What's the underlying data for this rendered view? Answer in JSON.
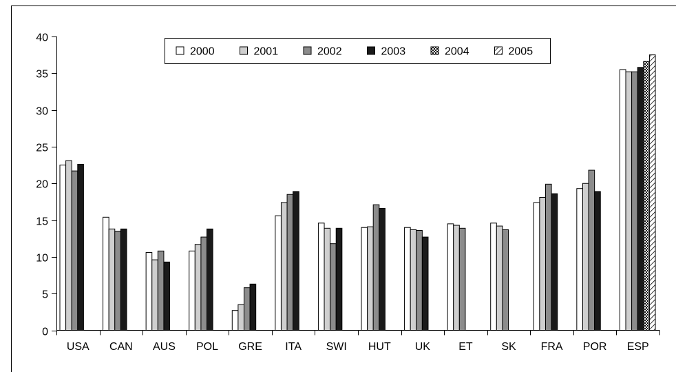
{
  "chart_data": {
    "type": "bar",
    "title": "",
    "xlabel": "",
    "ylabel": "",
    "ylim": [
      0,
      40
    ],
    "yticks": [
      0,
      5,
      10,
      15,
      20,
      25,
      30,
      35,
      40
    ],
    "grid": false,
    "legend_position": "top-center",
    "categories": [
      "USA",
      "CAN",
      "AUS",
      "POL",
      "GRE",
      "ITA",
      "SWI",
      "HUT",
      "UK",
      "ET",
      "SK",
      "FRA",
      "POR",
      "ESP"
    ],
    "series": [
      {
        "name": "2000",
        "fill": "#ffffff",
        "pattern": "solid",
        "values": [
          22.5,
          15.4,
          10.6,
          10.8,
          2.7,
          15.6,
          14.6,
          14.0,
          14.0,
          14.5,
          14.6,
          17.4,
          19.3,
          35.5
        ]
      },
      {
        "name": "2001",
        "fill": "#cfcfcf",
        "pattern": "solid",
        "values": [
          23.1,
          13.8,
          9.6,
          11.7,
          3.5,
          17.4,
          13.9,
          14.1,
          13.7,
          14.3,
          14.2,
          18.1,
          20.0,
          35.2
        ]
      },
      {
        "name": "2002",
        "fill": "#8c8c8c",
        "pattern": "solid",
        "values": [
          21.7,
          13.5,
          10.8,
          12.7,
          5.8,
          18.5,
          11.8,
          17.1,
          13.6,
          13.9,
          13.7,
          19.9,
          21.8,
          35.2
        ]
      },
      {
        "name": "2003",
        "fill": "#1a1a1a",
        "pattern": "solid",
        "values": [
          22.6,
          13.8,
          9.3,
          13.8,
          6.3,
          18.9,
          13.9,
          16.6,
          12.7,
          null,
          null,
          18.6,
          18.9,
          35.8
        ]
      },
      {
        "name": "2004",
        "fill": "#ffffff",
        "pattern": "dots",
        "values": [
          null,
          null,
          null,
          null,
          null,
          null,
          null,
          null,
          null,
          null,
          null,
          null,
          null,
          36.6
        ]
      },
      {
        "name": "2005",
        "fill": "#ffffff",
        "pattern": "hatch",
        "values": [
          null,
          null,
          null,
          null,
          null,
          null,
          null,
          null,
          null,
          null,
          null,
          null,
          null,
          37.5
        ]
      }
    ]
  }
}
